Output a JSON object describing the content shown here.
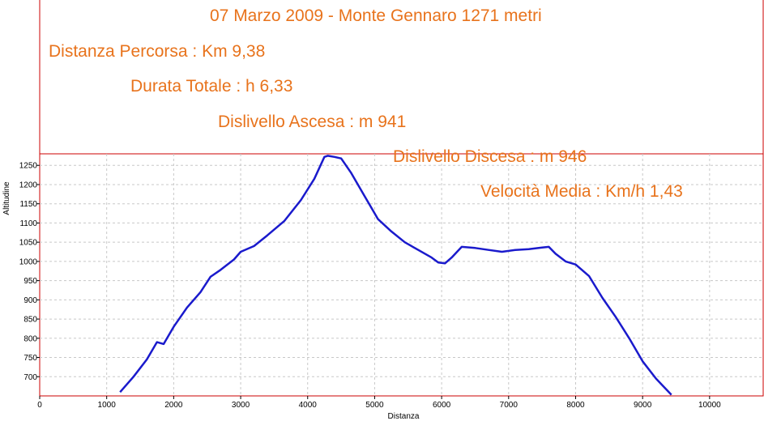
{
  "header": {
    "title": "07 Marzo 2009 - Monte Gennaro 1271 metri",
    "stats": [
      "Distanza Percorsa : Km 9,38",
      "Durata Totale : h 6,33",
      "Dislivello Ascesa : m 941",
      "Dislivello Discesa : m 946",
      "Velocità Media : Km/h 1,43"
    ]
  },
  "colors": {
    "line": "#1a1acc",
    "frame": "#cc0000",
    "annotation_text": "#e8731c",
    "grid": "#c8c8c8"
  },
  "chart_data": {
    "type": "line",
    "xlabel": "Distanza",
    "ylabel": "Altitudine",
    "xlim": [
      0,
      10800
    ],
    "ylim": [
      650,
      1280
    ],
    "xticks": [
      0,
      1000,
      2000,
      3000,
      4000,
      5000,
      6000,
      7000,
      8000,
      9000,
      10000
    ],
    "yticks": [
      700,
      750,
      800,
      850,
      900,
      950,
      1000,
      1050,
      1100,
      1150,
      1200,
      1250
    ],
    "grid": true,
    "series": [
      {
        "x": [
          1200,
          1400,
          1600,
          1750,
          1850,
          2000,
          2200,
          2400,
          2550,
          2700,
          2900,
          3000,
          3200,
          3400,
          3650,
          3900,
          4100,
          4250,
          4300,
          4400,
          4500,
          4650,
          4850,
          5050,
          5250,
          5450,
          5650,
          5850,
          5950,
          6050,
          6150,
          6300,
          6500,
          6700,
          6900,
          7100,
          7300,
          7500,
          7600,
          7700,
          7850,
          8000,
          8200,
          8400,
          8600,
          8800,
          9000,
          9200,
          9430
        ],
        "y": [
          660,
          700,
          745,
          790,
          785,
          830,
          880,
          920,
          960,
          978,
          1005,
          1025,
          1040,
          1068,
          1105,
          1160,
          1215,
          1272,
          1275,
          1272,
          1268,
          1230,
          1170,
          1110,
          1078,
          1050,
          1030,
          1010,
          997,
          995,
          1010,
          1038,
          1035,
          1030,
          1025,
          1030,
          1032,
          1036,
          1038,
          1020,
          1000,
          992,
          962,
          905,
          855,
          800,
          740,
          695,
          653
        ]
      }
    ]
  }
}
